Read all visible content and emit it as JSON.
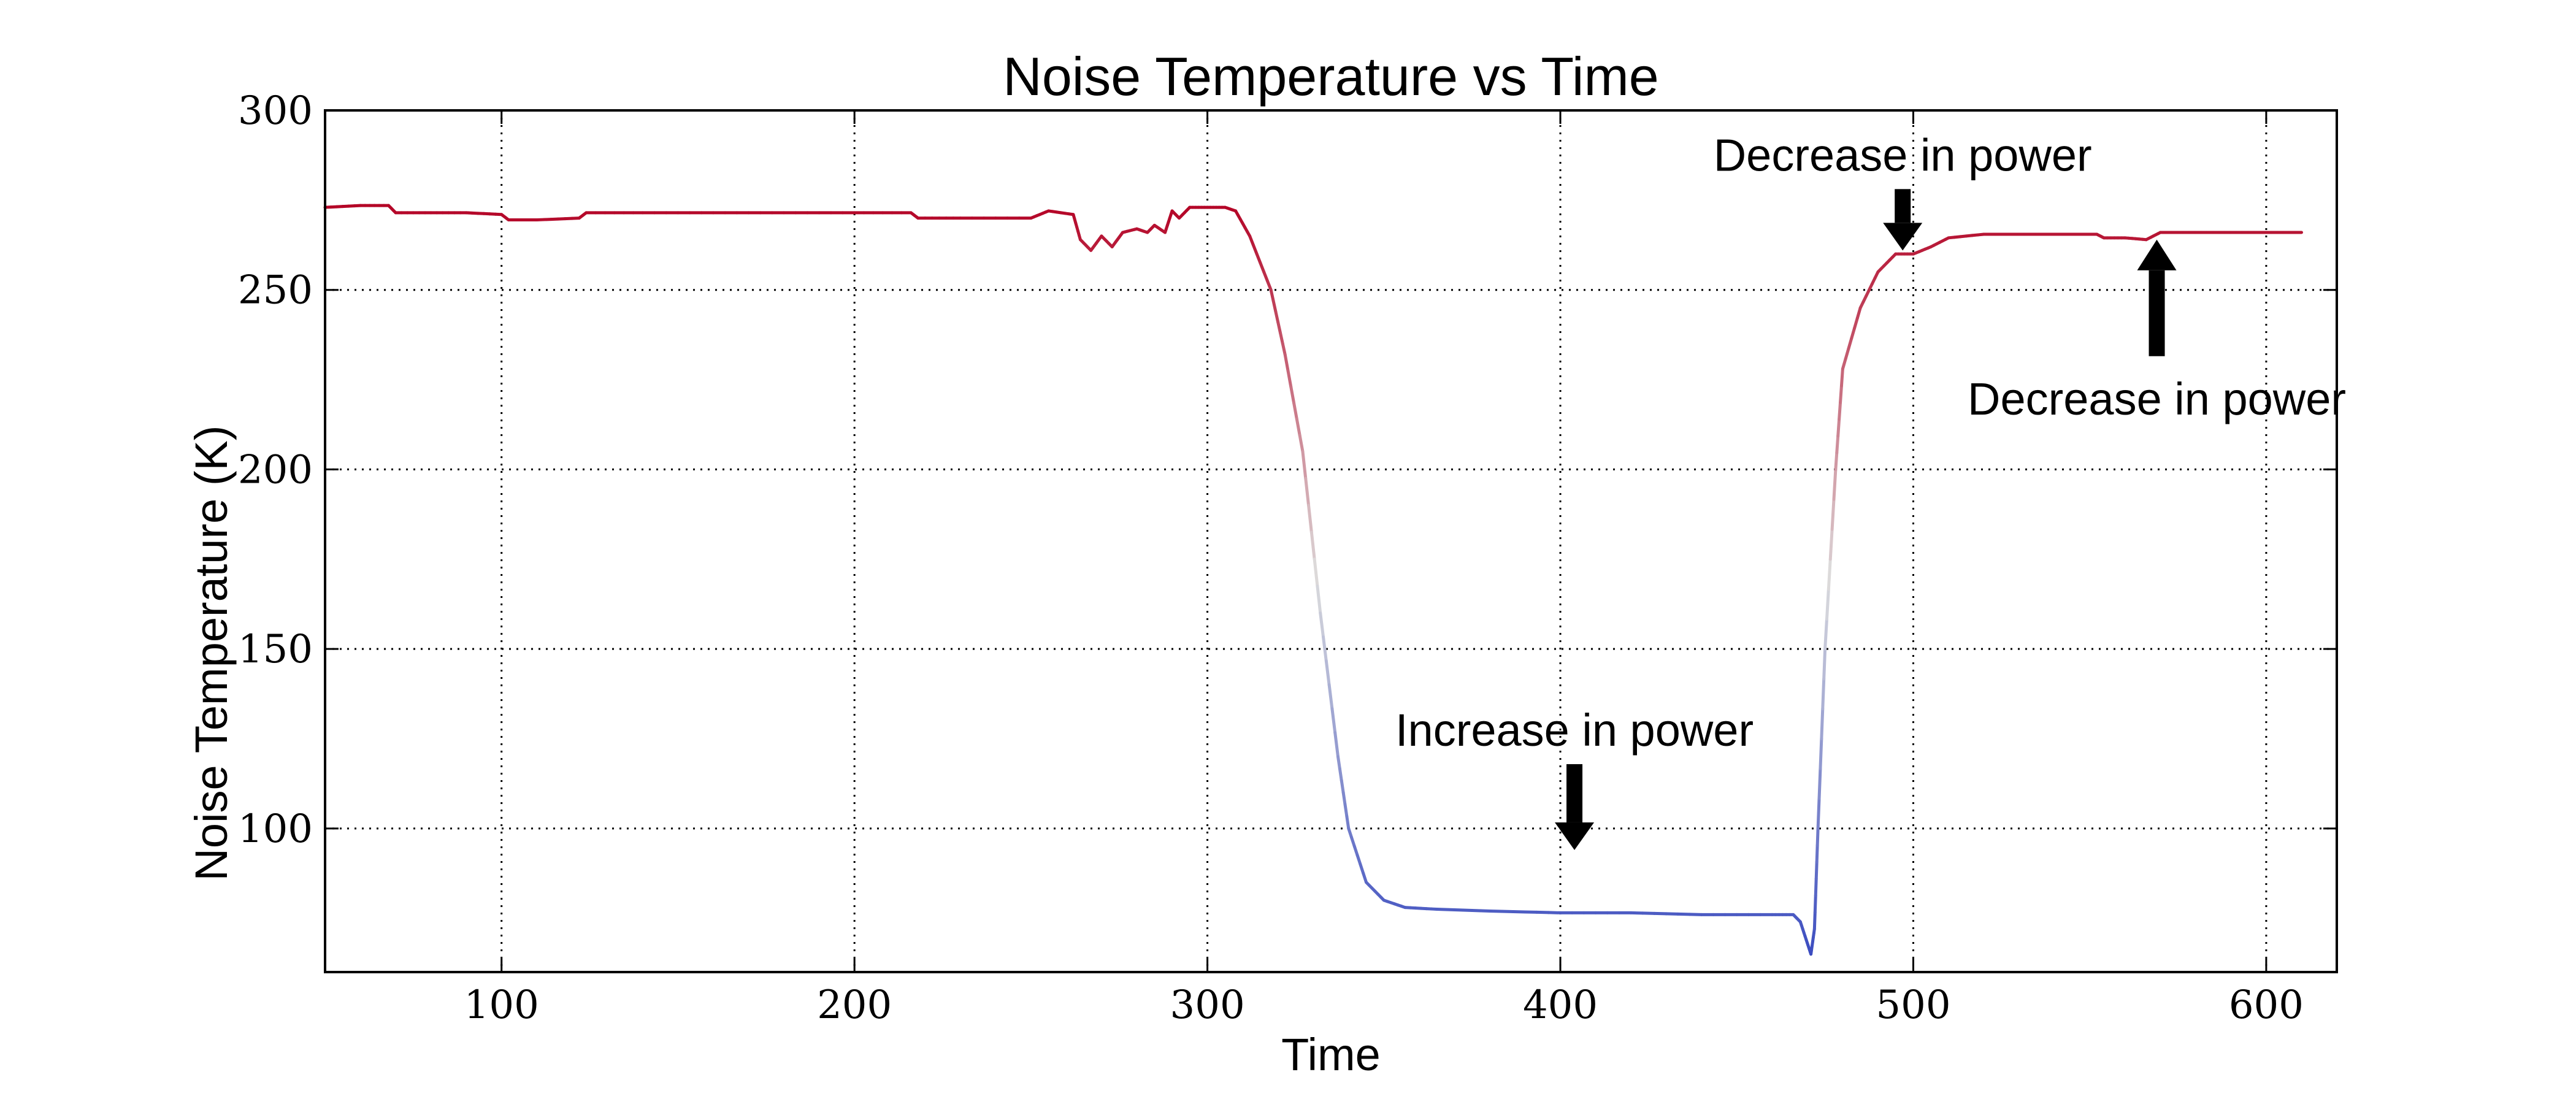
{
  "chart_data": {
    "type": "line",
    "title": "Noise Temperature vs Time",
    "xlabel": "Time",
    "ylabel": "Noise Temperature (K)",
    "xlim": [
      50,
      620
    ],
    "ylim": [
      60,
      300
    ],
    "xticks": [
      100,
      200,
      300,
      400,
      500,
      600
    ],
    "yticks": [
      100,
      150,
      200,
      250,
      300
    ],
    "grid": true,
    "colormap": {
      "low": "#3b4cc0",
      "mid": "#dddddd",
      "high": "#b40426"
    },
    "series": [
      {
        "x": [
          50,
          60,
          68,
          70,
          80,
          90,
          100,
          102,
          110,
          122,
          124,
          140,
          160,
          180,
          200,
          216,
          218,
          230,
          250,
          255,
          262,
          264,
          267,
          270,
          273,
          276,
          280,
          283,
          285,
          288,
          290,
          292,
          295,
          300,
          305,
          308,
          312,
          318,
          322,
          327,
          332,
          337,
          340,
          345,
          350,
          356,
          365,
          380,
          400,
          420,
          440,
          460,
          466,
          468,
          470,
          471,
          472,
          473,
          475,
          478,
          480,
          485,
          490,
          495,
          500,
          505,
          510,
          520,
          530,
          540,
          552,
          554,
          560,
          566,
          570,
          580,
          590,
          600,
          610
        ],
        "y": [
          273,
          273.5,
          273.5,
          271.5,
          271.5,
          271.5,
          271,
          269.5,
          269.5,
          270,
          271.5,
          271.5,
          271.5,
          271.5,
          271.5,
          271.5,
          270,
          270,
          270,
          272,
          271,
          264,
          261,
          265,
          262,
          266,
          267,
          266,
          268,
          266,
          272,
          270,
          273,
          273,
          273,
          272,
          265,
          250,
          232,
          205,
          160,
          120,
          100,
          85,
          80,
          78,
          77.5,
          77,
          76.5,
          76.5,
          76,
          76,
          76,
          74,
          68,
          65,
          72,
          100,
          150,
          200,
          228,
          245,
          255,
          260,
          260,
          262,
          264.5,
          265.5,
          265.5,
          265.5,
          265.5,
          264.5,
          264.5,
          264,
          266,
          266,
          266,
          266,
          266
        ]
      }
    ],
    "annotations": [
      {
        "text": "Increase in power",
        "x": 404,
        "y": 94,
        "direction": "down"
      },
      {
        "text": "Decrease in power",
        "x": 497,
        "y": 261,
        "direction": "down"
      },
      {
        "text": "Decrease in power",
        "x": 569,
        "y": 264,
        "direction": "up"
      }
    ]
  }
}
